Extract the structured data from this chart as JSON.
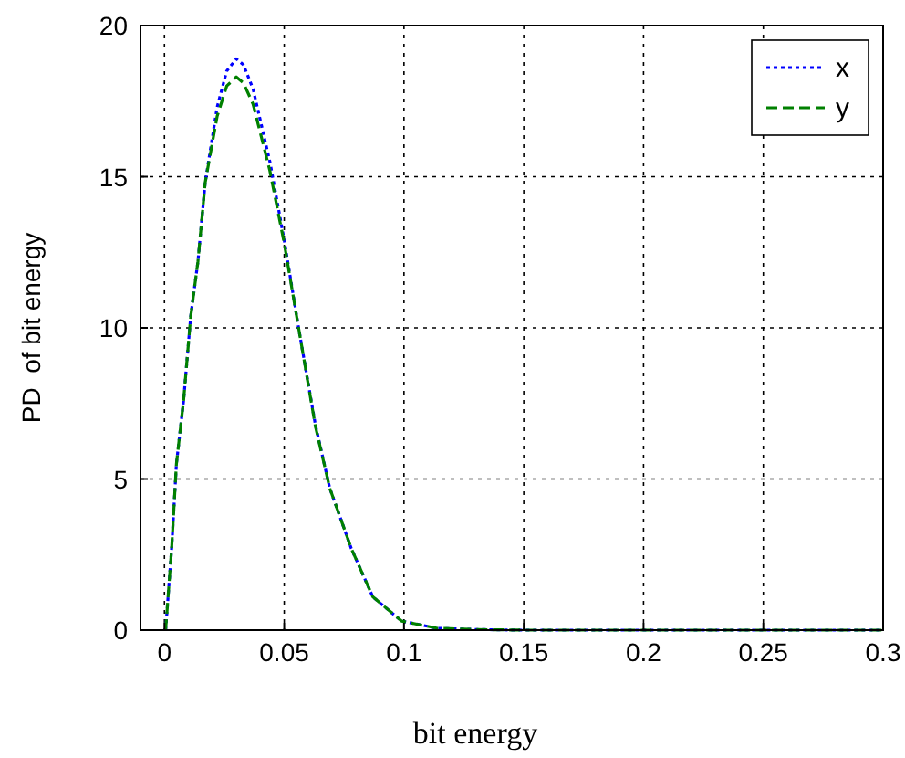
{
  "chart_data": {
    "type": "line",
    "xlabel": "bit energy",
    "ylabel": "PD  of bit energy",
    "x": [
      0.0005,
      0.003,
      0.005,
      0.008,
      0.011,
      0.014,
      0.017,
      0.022,
      0.026,
      0.03,
      0.033,
      0.037,
      0.044,
      0.05,
      0.056,
      0.063,
      0.069,
      0.078,
      0.087,
      0.099,
      0.114,
      0.13,
      0.15,
      0.2,
      0.25,
      0.3
    ],
    "series": [
      {
        "name": "x",
        "color": "#0000ff",
        "line_style": "dotted",
        "values": [
          0,
          2.7,
          5.5,
          7.6,
          10.4,
          12.2,
          14.8,
          17.3,
          18.5,
          18.9,
          18.7,
          17.9,
          15.5,
          12.9,
          10.0,
          6.8,
          4.7,
          2.7,
          1.1,
          0.3,
          0.06,
          0.02,
          0,
          0,
          0,
          0
        ]
      },
      {
        "name": "y",
        "color": "#008000",
        "line_style": "dashed",
        "values": [
          0,
          2.7,
          5.5,
          7.6,
          10.4,
          12.2,
          14.8,
          17.0,
          18.0,
          18.3,
          18.1,
          17.4,
          15.2,
          12.8,
          10.0,
          6.75,
          4.7,
          2.7,
          1.1,
          0.3,
          0.06,
          0.02,
          0,
          0,
          0,
          0
        ]
      }
    ],
    "xlim": [
      -0.01,
      0.3
    ],
    "xticks": [
      0,
      0.05,
      0.1,
      0.15,
      0.2,
      0.25,
      0.3
    ],
    "ylim": [
      0,
      20
    ],
    "yticks": [
      0,
      5,
      10,
      15,
      20
    ],
    "grid": true,
    "legend": "top right"
  }
}
